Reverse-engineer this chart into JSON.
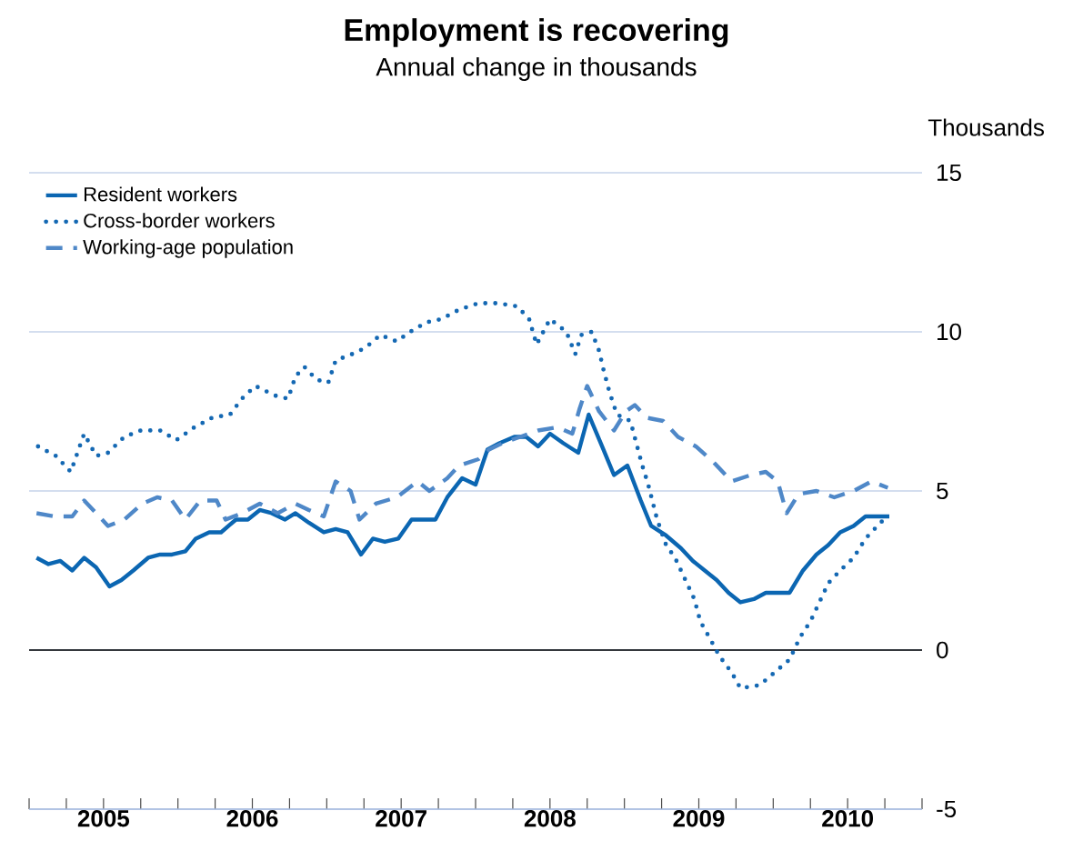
{
  "chart_data": {
    "type": "line",
    "title": "Employment is recovering",
    "subtitle": "Annual change in thousands",
    "ylabel": "Thousands",
    "xlim": [
      2005,
      2011
    ],
    "ylim": [
      -5,
      15
    ],
    "yticks": [
      -5,
      0,
      5,
      10,
      15
    ],
    "xticks": [
      {
        "value": 2005,
        "label": null
      },
      {
        "value": 2005.25,
        "label": null
      },
      {
        "value": 2005.5,
        "label": "2005"
      },
      {
        "value": 2005.75,
        "label": null
      },
      {
        "value": 2006,
        "label": null
      },
      {
        "value": 2006.25,
        "label": null
      },
      {
        "value": 2006.5,
        "label": "2006"
      },
      {
        "value": 2006.75,
        "label": null
      },
      {
        "value": 2007,
        "label": null
      },
      {
        "value": 2007.25,
        "label": null
      },
      {
        "value": 2007.5,
        "label": "2007"
      },
      {
        "value": 2007.75,
        "label": null
      },
      {
        "value": 2008,
        "label": null
      },
      {
        "value": 2008.25,
        "label": null
      },
      {
        "value": 2008.5,
        "label": "2008"
      },
      {
        "value": 2008.75,
        "label": null
      },
      {
        "value": 2009,
        "label": null
      },
      {
        "value": 2009.25,
        "label": null
      },
      {
        "value": 2009.5,
        "label": "2009"
      },
      {
        "value": 2009.75,
        "label": null
      },
      {
        "value": 2010,
        "label": null
      },
      {
        "value": 2010.25,
        "label": null
      },
      {
        "value": 2010.5,
        "label": "2010"
      },
      {
        "value": 2010.75,
        "label": null
      },
      {
        "value": 2011,
        "label": null
      }
    ],
    "grid": "y",
    "legend": "top left",
    "marker": "none",
    "ref_lines": [
      {
        "axis": "y",
        "value": 0,
        "color": "#000000"
      }
    ],
    "series": [
      {
        "name": "Resident workers",
        "color": "#0b66b2",
        "line_style": "solid",
        "x": [
          2005.05,
          2005.13,
          2005.21,
          2005.29,
          2005.37,
          2005.45,
          2005.54,
          2005.62,
          2005.7,
          2005.8,
          2005.88,
          2005.96,
          2006.05,
          2006.12,
          2006.21,
          2006.29,
          2006.39,
          2006.47,
          2006.55,
          2006.63,
          2006.72,
          2006.79,
          2006.88,
          2006.98,
          2007.06,
          2007.14,
          2007.23,
          2007.31,
          2007.39,
          2007.48,
          2007.57,
          2007.65,
          2007.73,
          2007.81,
          2007.91,
          2008.0,
          2008.08,
          2008.16,
          2008.26,
          2008.34,
          2008.42,
          2008.5,
          2008.59,
          2008.69,
          2008.76,
          2008.85,
          2008.93,
          2009.02,
          2009.11,
          2009.18,
          2009.28,
          2009.38,
          2009.46,
          2009.54,
          2009.62,
          2009.7,
          2009.78,
          2009.87,
          2009.95,
          2010.11,
          2010.2,
          2010.29,
          2010.37,
          2010.45,
          2010.54,
          2010.62,
          2010.7,
          2010.78
        ],
        "values": [
          2.9,
          2.7,
          2.8,
          2.5,
          2.9,
          2.6,
          2.0,
          2.2,
          2.5,
          2.9,
          3.0,
          3.0,
          3.1,
          3.5,
          3.7,
          3.7,
          4.1,
          4.1,
          4.4,
          4.3,
          4.1,
          4.3,
          4.0,
          3.7,
          3.8,
          3.7,
          3.0,
          3.5,
          3.4,
          3.5,
          4.1,
          4.1,
          4.1,
          4.8,
          5.4,
          5.2,
          6.3,
          6.5,
          6.7,
          6.7,
          6.4,
          6.8,
          6.5,
          6.2,
          7.4,
          6.4,
          5.5,
          5.8,
          4.7,
          3.9,
          3.6,
          3.2,
          2.8,
          2.5,
          2.2,
          1.8,
          1.5,
          1.6,
          1.8,
          1.8,
          2.5,
          3.0,
          3.3,
          3.7,
          3.9,
          4.2,
          4.2,
          4.2
        ]
      },
      {
        "name": "Cross-border workers",
        "color": "#1468b3",
        "line_style": "dotted",
        "x": [
          2005.06,
          2005.18,
          2005.28,
          2005.37,
          2005.45,
          2005.53,
          2005.64,
          2005.75,
          2005.88,
          2005.99,
          2006.11,
          2006.23,
          2006.35,
          2006.43,
          2006.52,
          2006.65,
          2006.74,
          2006.79,
          2006.85,
          2006.93,
          2007.01,
          2007.06,
          2007.17,
          2007.26,
          2007.36,
          2007.47,
          2007.56,
          2007.67,
          2007.77,
          2007.89,
          2008.02,
          2008.15,
          2008.28,
          2008.36,
          2008.41,
          2008.5,
          2008.61,
          2008.67,
          2008.71,
          2008.78,
          2008.83,
          2008.86,
          2008.9,
          2008.95,
          2009.04,
          2009.08,
          2009.12,
          2009.16,
          2009.22,
          2009.28,
          2009.34,
          2009.4,
          2009.47,
          2009.51,
          2009.57,
          2009.64,
          2009.72,
          2009.78,
          2009.91,
          2010.01,
          2010.11,
          2010.18,
          2010.25,
          2010.31,
          2010.37,
          2010.45,
          2010.54,
          2010.62,
          2010.72,
          2010.77
        ],
        "values": [
          6.4,
          6.1,
          5.6,
          6.8,
          6.1,
          6.2,
          6.7,
          6.9,
          6.9,
          6.6,
          7.0,
          7.3,
          7.4,
          7.9,
          8.3,
          8.0,
          7.9,
          8.6,
          8.9,
          8.5,
          8.4,
          9.1,
          9.3,
          9.5,
          9.9,
          9.7,
          10.0,
          10.3,
          10.4,
          10.7,
          10.9,
          10.9,
          10.8,
          10.4,
          9.6,
          10.4,
          10.0,
          9.3,
          9.9,
          10.0,
          9.4,
          8.8,
          8.1,
          7.4,
          7.2,
          6.5,
          5.8,
          5.2,
          4.1,
          3.3,
          2.9,
          2.3,
          1.6,
          0.9,
          0.4,
          -0.2,
          -0.7,
          -1.2,
          -1.1,
          -0.7,
          -0.3,
          0.4,
          0.9,
          1.5,
          2.1,
          2.5,
          2.9,
          3.5,
          4.0,
          4.2
        ]
      },
      {
        "name": "Working-age population",
        "color": "#4f88c8",
        "line_style": "dashed",
        "x": [
          2005.05,
          2005.17,
          2005.29,
          2005.37,
          2005.45,
          2005.53,
          2005.64,
          2005.76,
          2005.86,
          2005.96,
          2006.05,
          2006.15,
          2006.26,
          2006.32,
          2006.43,
          2006.55,
          2006.67,
          2006.79,
          2006.88,
          2006.98,
          2007.06,
          2007.16,
          2007.22,
          2007.33,
          2007.47,
          2007.61,
          2007.69,
          2007.81,
          2007.89,
          2008.02,
          2008.09,
          2008.18,
          2008.3,
          2008.42,
          2008.55,
          2008.65,
          2008.7,
          2008.75,
          2008.83,
          2008.93,
          2009.01,
          2009.07,
          2009.15,
          2009.26,
          2009.36,
          2009.48,
          2009.6,
          2009.72,
          2009.85,
          2009.95,
          2010.03,
          2010.09,
          2010.17,
          2010.29,
          2010.41,
          2010.54,
          2010.66,
          2010.77
        ],
        "values": [
          4.3,
          4.2,
          4.2,
          4.7,
          4.3,
          3.9,
          4.1,
          4.6,
          4.8,
          4.7,
          4.1,
          4.7,
          4.7,
          4.1,
          4.3,
          4.6,
          4.3,
          4.6,
          4.4,
          4.2,
          5.3,
          5.0,
          4.1,
          4.6,
          4.8,
          5.3,
          5.0,
          5.4,
          5.8,
          6.0,
          6.3,
          6.5,
          6.7,
          6.9,
          7.0,
          6.8,
          7.6,
          8.3,
          7.5,
          6.9,
          7.5,
          7.7,
          7.3,
          7.2,
          6.7,
          6.4,
          5.9,
          5.3,
          5.5,
          5.6,
          5.3,
          4.3,
          4.9,
          5.0,
          4.8,
          5.0,
          5.3,
          5.1
        ]
      }
    ]
  }
}
